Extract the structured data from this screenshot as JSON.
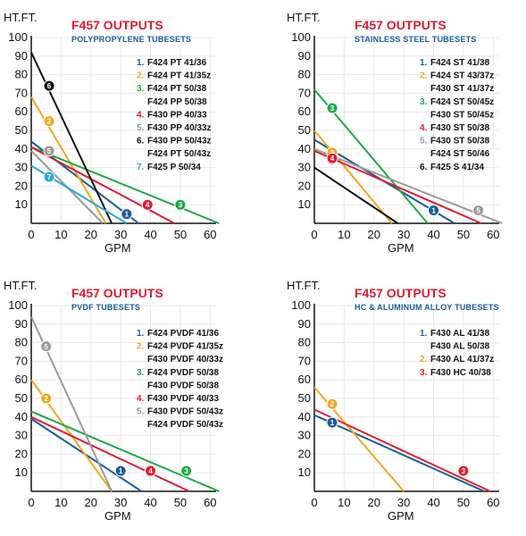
{
  "chart_data": [
    {
      "type": "line",
      "title": "F457 OUTPUTS",
      "subtitle": "POLYPROPYLENE TUBESETS",
      "ylabel": "HT.FT.",
      "xlabel": "GPM",
      "xlim": [
        0,
        62
      ],
      "ylim": [
        0,
        100
      ],
      "xticks": [
        "0",
        "10",
        "20",
        "30",
        "40",
        "50",
        "60"
      ],
      "yticks": [
        "10",
        "20",
        "30",
        "40",
        "50",
        "60",
        "70",
        "80",
        "90",
        "100"
      ],
      "legend": [
        {
          "num": "1.",
          "text": "F424 PT 41/36",
          "color": "#1b5c9a"
        },
        {
          "num": "2.",
          "text": "F424 PT 41/35z",
          "color": "#f0a820"
        },
        {
          "num": "3.",
          "text": "F424 PT 50/38",
          "color": "#1fa84a"
        },
        {
          "num": "",
          "text": "F424 PP 50/38",
          "color": "#111111"
        },
        {
          "num": "4.",
          "text": "F430 PP 40/33",
          "color": "#e31b2f"
        },
        {
          "num": "5.",
          "text": "F430 PP 40/33z",
          "color": "#9a9a9a"
        },
        {
          "num": "6.",
          "text": "F430 PP 50/43z",
          "color": "#111111"
        },
        {
          "num": "",
          "text": "F424 PT 50/43z",
          "color": "#111111"
        },
        {
          "num": "7.",
          "text": "F425 P 50/34",
          "color": "#29a8df"
        }
      ],
      "series": [
        {
          "marker": "1",
          "color": "#1b5c9a",
          "x": [
            0,
            36
          ],
          "y": [
            44,
            0
          ],
          "marker_xy": [
            32,
            5
          ]
        },
        {
          "marker": "2",
          "color": "#f0a820",
          "x": [
            0,
            25
          ],
          "y": [
            68,
            0
          ],
          "marker_xy": [
            6,
            55
          ]
        },
        {
          "marker": "3",
          "color": "#1fa84a",
          "x": [
            0,
            63
          ],
          "y": [
            41,
            0
          ],
          "marker_xy": [
            50,
            10
          ]
        },
        {
          "marker": "4",
          "color": "#e31b2f",
          "x": [
            0,
            48
          ],
          "y": [
            41,
            0
          ],
          "marker_xy": [
            39,
            10
          ]
        },
        {
          "marker": "5",
          "color": "#9a9a9a",
          "x": [
            0,
            24
          ],
          "y": [
            39,
            0
          ],
          "marker_xy": [
            6,
            39
          ]
        },
        {
          "marker": "6",
          "color": "#111111",
          "x": [
            0,
            27
          ],
          "y": [
            92,
            0
          ],
          "marker_xy": [
            6,
            74
          ]
        },
        {
          "marker": "7",
          "color": "#29a8df",
          "x": [
            0,
            32
          ],
          "y": [
            31,
            0
          ],
          "marker_xy": [
            6,
            25
          ]
        }
      ]
    },
    {
      "type": "line",
      "title": "F457 OUTPUTS",
      "subtitle": "STAINLESS STEEL TUBESETS",
      "ylabel": "HT.FT.",
      "xlabel": "GPM",
      "xlim": [
        0,
        62
      ],
      "ylim": [
        0,
        100
      ],
      "xticks": [
        "0",
        "10",
        "20",
        "30",
        "40",
        "50",
        "60"
      ],
      "yticks": [
        "10",
        "20",
        "30",
        "40",
        "50",
        "60",
        "70",
        "80",
        "90",
        "100"
      ],
      "legend": [
        {
          "num": "1.",
          "text": "F424 ST 41/38",
          "color": "#1b5c9a"
        },
        {
          "num": "2.",
          "text": "F424 ST 43/37z",
          "color": "#f0a820"
        },
        {
          "num": "",
          "text": "F430 ST 41/37z",
          "color": "#111111"
        },
        {
          "num": "3.",
          "text": "F424 ST 50/45z",
          "color": "#1fa84a"
        },
        {
          "num": "",
          "text": "F430 ST 50/45z",
          "color": "#111111"
        },
        {
          "num": "4.",
          "text": "F430 ST 50/38",
          "color": "#e31b2f"
        },
        {
          "num": "5.",
          "text": "F430 ST 50/38",
          "color": "#9a9a9a"
        },
        {
          "num": "",
          "text": "F424 ST 50/46",
          "color": "#111111"
        },
        {
          "num": "6.",
          "text": "F425 S 41/34",
          "color": "#111111"
        }
      ],
      "series": [
        {
          "marker": "1",
          "color": "#1b5c9a",
          "x": [
            0,
            47
          ],
          "y": [
            45,
            0
          ],
          "marker_xy": [
            40,
            7
          ]
        },
        {
          "marker": "2",
          "color": "#f0a820",
          "x": [
            0,
            26
          ],
          "y": [
            50,
            0
          ],
          "marker_xy": [
            6,
            38
          ]
        },
        {
          "marker": "3",
          "color": "#1fa84a",
          "x": [
            0,
            38
          ],
          "y": [
            72,
            0
          ],
          "marker_xy": [
            6,
            62
          ]
        },
        {
          "marker": "4",
          "color": "#e31b2f",
          "x": [
            0,
            56
          ],
          "y": [
            39,
            0
          ],
          "marker_xy": [
            6,
            35
          ]
        },
        {
          "marker": "5",
          "color": "#9a9a9a",
          "x": [
            0,
            63
          ],
          "y": [
            40,
            0
          ],
          "marker_xy": [
            55,
            7
          ]
        },
        {
          "marker": "6",
          "color": "#111111",
          "x": [
            0,
            28
          ],
          "y": [
            30,
            0
          ],
          "marker_xy": null
        }
      ]
    },
    {
      "type": "line",
      "title": "F457 OUTPUTS",
      "subtitle": "PVDF TUBESETS",
      "ylabel": "HT.FT.",
      "xlabel": "GPM",
      "xlim": [
        0,
        62
      ],
      "ylim": [
        0,
        100
      ],
      "xticks": [
        "0",
        "10",
        "20",
        "30",
        "40",
        "50",
        "60"
      ],
      "yticks": [
        "10",
        "20",
        "30",
        "40",
        "50",
        "60",
        "70",
        "80",
        "90",
        "100"
      ],
      "legend": [
        {
          "num": "1.",
          "text": "F424 PVDF 41/36",
          "color": "#1b5c9a"
        },
        {
          "num": "2.",
          "text": "F424 PVDF 41/35z",
          "color": "#f0a820"
        },
        {
          "num": "",
          "text": "F430 PVDF 40/33z",
          "color": "#111111"
        },
        {
          "num": "3.",
          "text": "F424 PVDF 50/38",
          "color": "#1fa84a"
        },
        {
          "num": "",
          "text": "F430 PVDF 50/38",
          "color": "#111111"
        },
        {
          "num": "4.",
          "text": "F430 PVDF 40/33",
          "color": "#e31b2f"
        },
        {
          "num": "5.",
          "text": "F430 PVDF 50/43z",
          "color": "#9a9a9a"
        },
        {
          "num": "",
          "text": "F424 PVDF 50/43z",
          "color": "#111111"
        }
      ],
      "series": [
        {
          "marker": "1",
          "color": "#1b5c9a",
          "x": [
            0,
            37
          ],
          "y": [
            39,
            0
          ],
          "marker_xy": [
            30,
            11
          ]
        },
        {
          "marker": "2",
          "color": "#f0a820",
          "x": [
            0,
            27
          ],
          "y": [
            60,
            0
          ],
          "marker_xy": [
            5,
            50
          ]
        },
        {
          "marker": "3",
          "color": "#1fa84a",
          "x": [
            0,
            63
          ],
          "y": [
            43,
            0
          ],
          "marker_xy": [
            52,
            11
          ]
        },
        {
          "marker": "4",
          "color": "#e31b2f",
          "x": [
            0,
            53
          ],
          "y": [
            40,
            0
          ],
          "marker_xy": [
            40,
            11
          ]
        },
        {
          "marker": "5",
          "color": "#9a9a9a",
          "x": [
            0,
            27
          ],
          "y": [
            94,
            0
          ],
          "marker_xy": [
            5,
            78
          ]
        }
      ]
    },
    {
      "type": "line",
      "title": "F457 OUTPUTS",
      "subtitle": "HC & ALUMINUM ALLOY TUBESETS",
      "ylabel": "HT.FT.",
      "xlabel": "GPM",
      "xlim": [
        0,
        62
      ],
      "ylim": [
        0,
        100
      ],
      "xticks": [
        "0",
        "10",
        "20",
        "30",
        "40",
        "50",
        "60"
      ],
      "yticks": [
        "10",
        "20",
        "30",
        "40",
        "50",
        "60",
        "70",
        "80",
        "90",
        "100"
      ],
      "legend": [
        {
          "num": "1.",
          "text": "F430 AL 41/38",
          "color": "#1b5c9a"
        },
        {
          "num": "",
          "text": "F430 AL 50/38",
          "color": "#111111"
        },
        {
          "num": "2.",
          "text": "F430 AL  41/37z",
          "color": "#f0a820"
        },
        {
          "num": "3.",
          "text": "F430 HC  40/38",
          "color": "#e31b2f"
        }
      ],
      "series": [
        {
          "marker": "1",
          "color": "#1b5c9a",
          "x": [
            0,
            57
          ],
          "y": [
            41,
            0
          ],
          "marker_xy": [
            6,
            37
          ]
        },
        {
          "marker": "2",
          "color": "#f0a820",
          "x": [
            0,
            30
          ],
          "y": [
            56,
            0
          ],
          "marker_xy": [
            6,
            47
          ]
        },
        {
          "marker": "3",
          "color": "#e31b2f",
          "x": [
            0,
            59
          ],
          "y": [
            44,
            0
          ],
          "marker_xy": [
            50,
            11
          ]
        }
      ]
    }
  ]
}
